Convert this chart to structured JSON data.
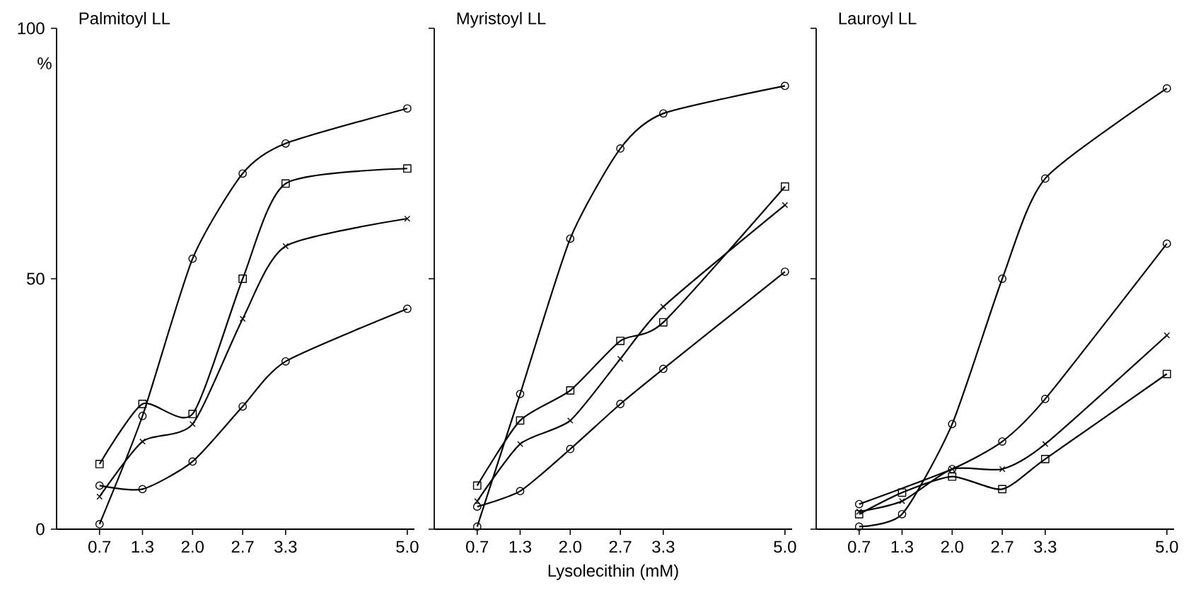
{
  "chart_data": [
    {
      "type": "line",
      "title": "Palmitoyl LL",
      "ylabel": "%",
      "x": [
        0.7,
        1.3,
        2.0,
        2.7,
        3.3,
        5.0
      ],
      "xlim": [
        0.1,
        5.1
      ],
      "ylim": [
        0,
        100
      ],
      "xticks": [
        {
          "value": 0.7,
          "label": "0.7"
        },
        1.3,
        {
          "value": 2.0,
          "label": "2.0"
        },
        2.7,
        3.3,
        {
          "value": 5.0,
          "label": "5.0"
        }
      ],
      "yticks": [
        0,
        50,
        100
      ],
      "line_style": "solid",
      "series": [
        {
          "color": "#000000",
          "marker": "circle",
          "values": [
            1,
            22.6,
            54,
            71,
            77,
            84
          ]
        },
        {
          "color": "#000000",
          "marker": "square",
          "values": [
            13,
            25,
            23,
            50,
            69,
            72
          ]
        },
        {
          "color": "#000000",
          "marker": "cross",
          "values": [
            6.5,
            17.5,
            21,
            42,
            56.5,
            62
          ]
        },
        {
          "color": "#000000",
          "marker": "circle",
          "values": [
            8.7,
            8,
            13.5,
            24.5,
            33.5,
            44
          ]
        }
      ]
    },
    {
      "type": "line",
      "title": "Myristoyl LL",
      "xlabel": "Lysolecithin (mM)",
      "x": [
        0.7,
        1.3,
        2.0,
        2.7,
        3.3,
        5.0
      ],
      "xlim": [
        0.1,
        5.1
      ],
      "ylim": [
        0,
        100
      ],
      "xticks": [
        {
          "value": 0.7,
          "label": "0.7"
        },
        1.3,
        {
          "value": 2.0,
          "label": "2.0"
        },
        2.7,
        3.3,
        {
          "value": 5.0,
          "label": "5.0"
        }
      ],
      "yticks": [
        0,
        50,
        100
      ],
      "tick_labels": "x",
      "line_style": "solid",
      "series": [
        {
          "color": "#000000",
          "marker": "circle",
          "values": [
            0.5,
            27,
            58,
            76,
            83,
            88.5
          ]
        },
        {
          "color": "#000000",
          "marker": "square",
          "values": [
            8.7,
            21.7,
            27.7,
            37.6,
            41.3,
            68.4
          ]
        },
        {
          "color": "#000000",
          "marker": "cross",
          "values": [
            5.6,
            17,
            21.7,
            34,
            44.4,
            64.7
          ]
        },
        {
          "color": "#000000",
          "marker": "circle",
          "values": [
            4.5,
            7.6,
            16,
            25,
            32,
            51.4
          ]
        }
      ]
    },
    {
      "type": "line",
      "title": "Lauroyl LL",
      "x": [
        0.7,
        1.3,
        2.0,
        2.7,
        3.3,
        5.0
      ],
      "xlim": [
        0.1,
        5.1
      ],
      "ylim": [
        0,
        100
      ],
      "xticks": [
        {
          "value": 0.7,
          "label": "0.7"
        },
        1.3,
        {
          "value": 2.0,
          "label": "2.0"
        },
        2.7,
        3.3,
        {
          "value": 5.0,
          "label": "5.0"
        }
      ],
      "yticks": [
        0,
        50,
        100
      ],
      "tick_labels": "x",
      "line_style": "solid",
      "series": [
        {
          "color": "#000000",
          "marker": "circle",
          "values": [
            0.5,
            3,
            21,
            50,
            70,
            88
          ]
        },
        {
          "color": "#000000",
          "marker": "circle",
          "values": [
            5,
            null,
            12,
            17.5,
            26,
            57
          ]
        },
        {
          "color": "#000000",
          "marker": "cross",
          "values": [
            3.5,
            5.6,
            12,
            12,
            17,
            38.7
          ]
        },
        {
          "color": "#000000",
          "marker": "square",
          "values": [
            3,
            7.3,
            10.5,
            8,
            14,
            31
          ]
        }
      ]
    }
  ]
}
